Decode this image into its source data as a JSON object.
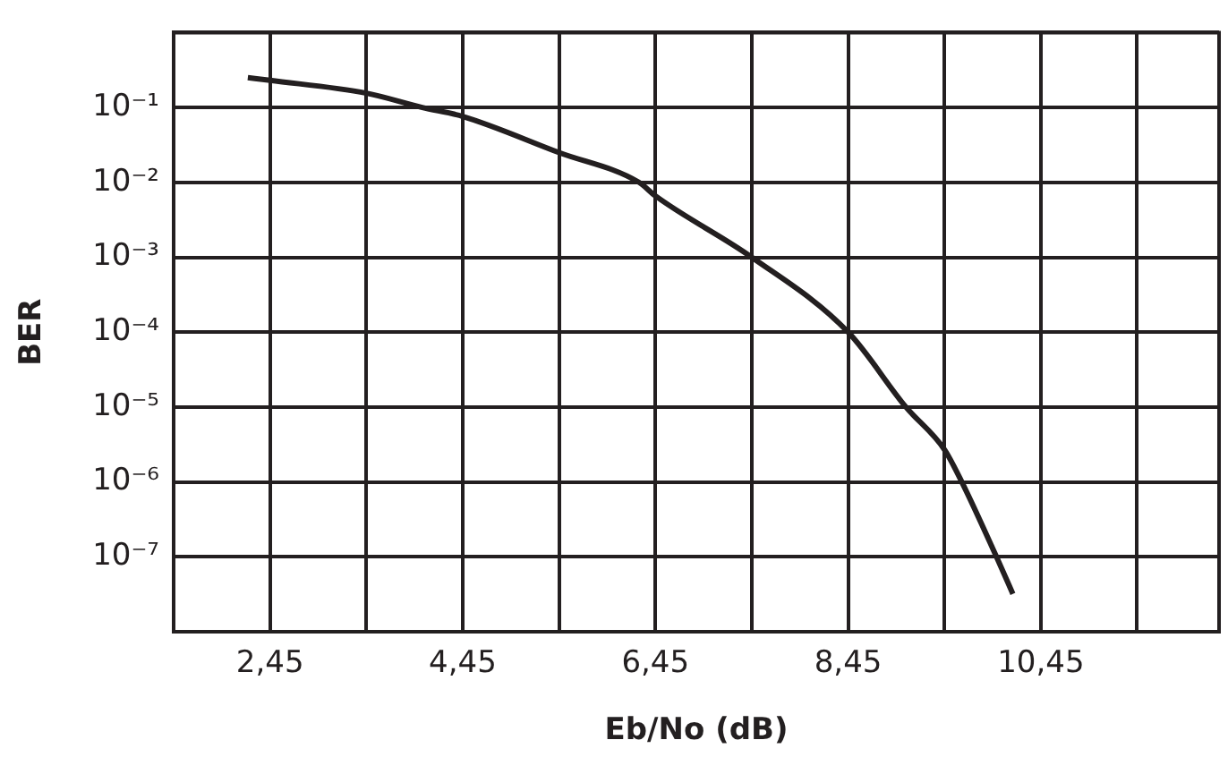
{
  "chart_data": {
    "type": "line",
    "xlabel": "Eb/No (dB)",
    "ylabel": "BER",
    "log": "y",
    "grid": true,
    "legend": false,
    "marker": "none",
    "line_style": "solid",
    "xlim": [
      1.45,
      12.3
    ],
    "xticks": [
      {
        "value": 1.45,
        "label": null
      },
      {
        "value": 2.45,
        "label": "2,45"
      },
      {
        "value": 3.45,
        "label": null
      },
      {
        "value": 4.45,
        "label": "4,45"
      },
      {
        "value": 5.45,
        "label": null
      },
      {
        "value": 6.45,
        "label": "6,45"
      },
      {
        "value": 7.45,
        "label": null
      },
      {
        "value": 8.45,
        "label": "8,45"
      },
      {
        "value": 9.45,
        "label": null
      },
      {
        "value": 10.45,
        "label": "10,45"
      },
      {
        "value": 11.45,
        "label": null
      }
    ],
    "ylim": [
      1e-08,
      1
    ],
    "yticks": [
      {
        "value": 1,
        "label": null
      },
      {
        "value": 0.1,
        "label": "10⁻¹"
      },
      {
        "value": 0.01,
        "label": "10⁻²"
      },
      {
        "value": 0.001,
        "label": "10⁻³"
      },
      {
        "value": 0.0001,
        "label": "10⁻⁴"
      },
      {
        "value": 1e-05,
        "label": "10⁻⁵"
      },
      {
        "value": 1e-06,
        "label": "10⁻⁶"
      },
      {
        "value": 1e-07,
        "label": "10⁻⁷"
      },
      {
        "value": 1e-08,
        "label": null
      }
    ],
    "series": [
      {
        "color": "#231f20",
        "x": [
          2.22,
          2.45,
          3.45,
          4.03,
          4.45,
          5.45,
          6.28,
          6.45,
          7.45,
          8.45,
          9.05,
          9.45,
          9.63,
          9.99,
          10.16
        ],
        "values": [
          0.25,
          0.23,
          0.155,
          0.1,
          0.076,
          0.025,
          0.01,
          0.0066,
          0.001,
          0.0001,
          1e-05,
          2.7e-06,
          1e-06,
          1e-07,
          3.2e-08
        ]
      }
    ]
  }
}
